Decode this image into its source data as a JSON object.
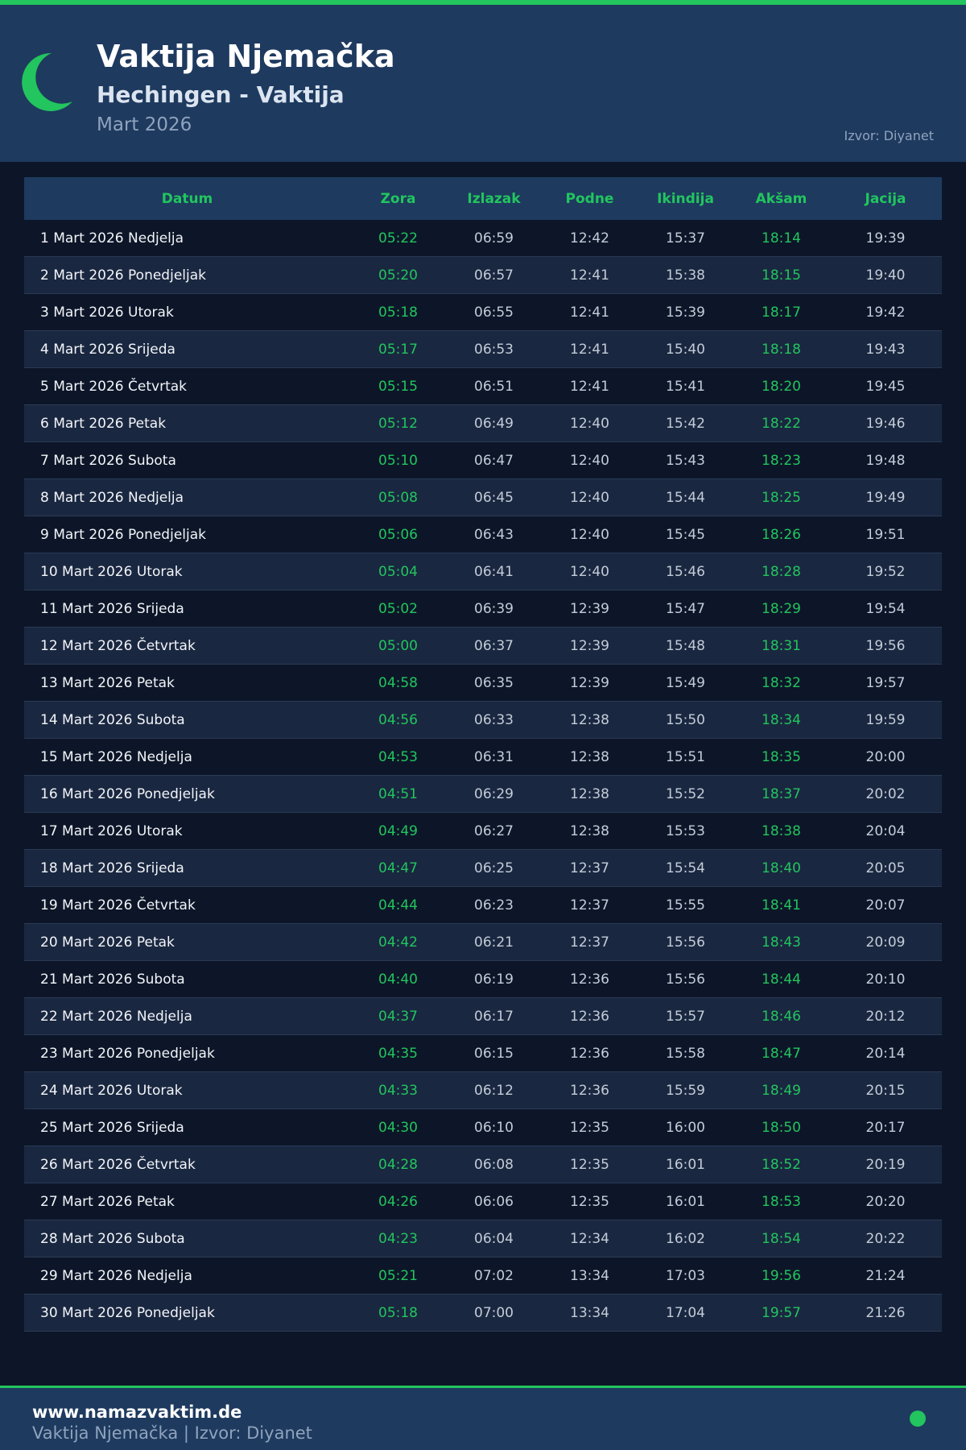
{
  "header": {
    "title": "Vaktija Njemačka",
    "subtitle": "Hechingen - Vaktija",
    "month": "Mart 2026",
    "source": "Izvor: Diyanet"
  },
  "table": {
    "columns": [
      "Datum",
      "Zora",
      "Izlazak",
      "Podne",
      "Ikindija",
      "Akšam",
      "Jacija"
    ],
    "rows": [
      [
        "1 Mart 2026 Nedjelja",
        "05:22",
        "06:59",
        "12:42",
        "15:37",
        "18:14",
        "19:39"
      ],
      [
        "2 Mart 2026 Ponedjeljak",
        "05:20",
        "06:57",
        "12:41",
        "15:38",
        "18:15",
        "19:40"
      ],
      [
        "3 Mart 2026 Utorak",
        "05:18",
        "06:55",
        "12:41",
        "15:39",
        "18:17",
        "19:42"
      ],
      [
        "4 Mart 2026 Srijeda",
        "05:17",
        "06:53",
        "12:41",
        "15:40",
        "18:18",
        "19:43"
      ],
      [
        "5 Mart 2026 Četvrtak",
        "05:15",
        "06:51",
        "12:41",
        "15:41",
        "18:20",
        "19:45"
      ],
      [
        "6 Mart 2026 Petak",
        "05:12",
        "06:49",
        "12:40",
        "15:42",
        "18:22",
        "19:46"
      ],
      [
        "7 Mart 2026 Subota",
        "05:10",
        "06:47",
        "12:40",
        "15:43",
        "18:23",
        "19:48"
      ],
      [
        "8 Mart 2026 Nedjelja",
        "05:08",
        "06:45",
        "12:40",
        "15:44",
        "18:25",
        "19:49"
      ],
      [
        "9 Mart 2026 Ponedjeljak",
        "05:06",
        "06:43",
        "12:40",
        "15:45",
        "18:26",
        "19:51"
      ],
      [
        "10 Mart 2026 Utorak",
        "05:04",
        "06:41",
        "12:40",
        "15:46",
        "18:28",
        "19:52"
      ],
      [
        "11 Mart 2026 Srijeda",
        "05:02",
        "06:39",
        "12:39",
        "15:47",
        "18:29",
        "19:54"
      ],
      [
        "12 Mart 2026 Četvrtak",
        "05:00",
        "06:37",
        "12:39",
        "15:48",
        "18:31",
        "19:56"
      ],
      [
        "13 Mart 2026 Petak",
        "04:58",
        "06:35",
        "12:39",
        "15:49",
        "18:32",
        "19:57"
      ],
      [
        "14 Mart 2026 Subota",
        "04:56",
        "06:33",
        "12:38",
        "15:50",
        "18:34",
        "19:59"
      ],
      [
        "15 Mart 2026 Nedjelja",
        "04:53",
        "06:31",
        "12:38",
        "15:51",
        "18:35",
        "20:00"
      ],
      [
        "16 Mart 2026 Ponedjeljak",
        "04:51",
        "06:29",
        "12:38",
        "15:52",
        "18:37",
        "20:02"
      ],
      [
        "17 Mart 2026 Utorak",
        "04:49",
        "06:27",
        "12:38",
        "15:53",
        "18:38",
        "20:04"
      ],
      [
        "18 Mart 2026 Srijeda",
        "04:47",
        "06:25",
        "12:37",
        "15:54",
        "18:40",
        "20:05"
      ],
      [
        "19 Mart 2026 Četvrtak",
        "04:44",
        "06:23",
        "12:37",
        "15:55",
        "18:41",
        "20:07"
      ],
      [
        "20 Mart 2026 Petak",
        "04:42",
        "06:21",
        "12:37",
        "15:56",
        "18:43",
        "20:09"
      ],
      [
        "21 Mart 2026 Subota",
        "04:40",
        "06:19",
        "12:36",
        "15:56",
        "18:44",
        "20:10"
      ],
      [
        "22 Mart 2026 Nedjelja",
        "04:37",
        "06:17",
        "12:36",
        "15:57",
        "18:46",
        "20:12"
      ],
      [
        "23 Mart 2026 Ponedjeljak",
        "04:35",
        "06:15",
        "12:36",
        "15:58",
        "18:47",
        "20:14"
      ],
      [
        "24 Mart 2026 Utorak",
        "04:33",
        "06:12",
        "12:36",
        "15:59",
        "18:49",
        "20:15"
      ],
      [
        "25 Mart 2026 Srijeda",
        "04:30",
        "06:10",
        "12:35",
        "16:00",
        "18:50",
        "20:17"
      ],
      [
        "26 Mart 2026 Četvrtak",
        "04:28",
        "06:08",
        "12:35",
        "16:01",
        "18:52",
        "20:19"
      ],
      [
        "27 Mart 2026 Petak",
        "04:26",
        "06:06",
        "12:35",
        "16:01",
        "18:53",
        "20:20"
      ],
      [
        "28 Mart 2026 Subota",
        "04:23",
        "06:04",
        "12:34",
        "16:02",
        "18:54",
        "20:22"
      ],
      [
        "29 Mart 2026 Nedjelja",
        "05:21",
        "07:02",
        "13:34",
        "17:03",
        "19:56",
        "21:24"
      ],
      [
        "30 Mart 2026 Ponedjeljak",
        "05:18",
        "07:00",
        "13:34",
        "17:04",
        "19:57",
        "21:26"
      ]
    ]
  },
  "footer": {
    "site": "www.namazvaktim.de",
    "text": "Vaktija Njemačka | Izvor: Diyanet"
  }
}
